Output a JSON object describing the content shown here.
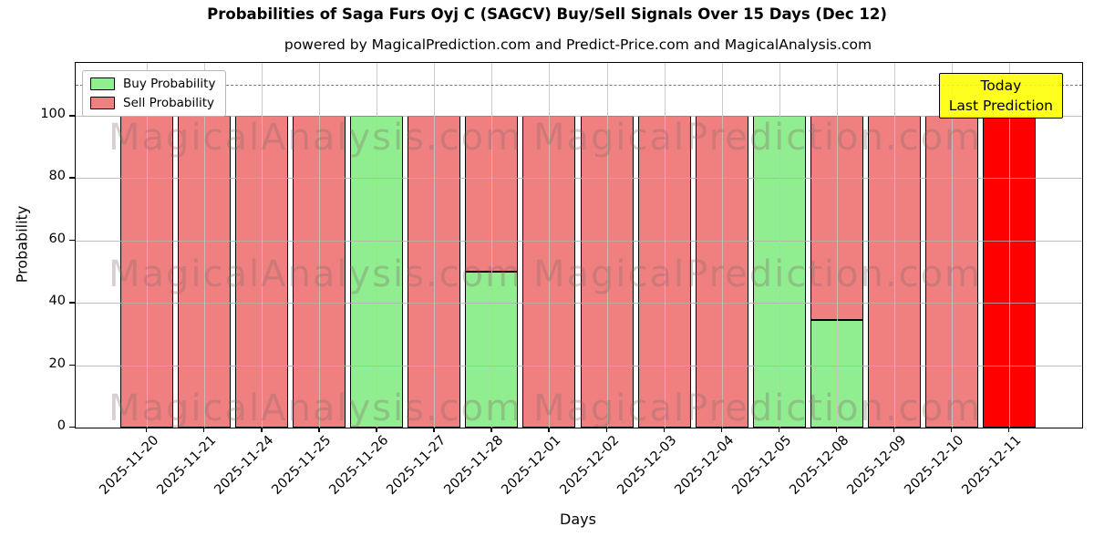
{
  "title": "Probabilities of Saga Furs Oyj C (SAGCV) Buy/Sell Signals Over 15 Days (Dec 12)",
  "subtitle": "powered by MagicalPrediction.com and Predict-Price.com and MagicalAnalysis.com",
  "legend": {
    "buy_label": "Buy Probability",
    "sell_label": "Sell Probability"
  },
  "annotation": {
    "line1": "Today",
    "line2": "Last Prediction"
  },
  "watermarks": {
    "left": "MagicalAnalysis.com",
    "right": "MagicalPrediction.com"
  },
  "axes": {
    "xlabel": "Days",
    "ylabel": "Probability",
    "yticks": [
      0,
      20,
      40,
      60,
      80,
      100
    ]
  },
  "colors": {
    "buy": "#90EE90",
    "sell": "#F08080",
    "today_bar": "#FF0000",
    "annotation_bg": "#FFFF00",
    "bar_edge": "#000000"
  },
  "chart_data": {
    "type": "bar",
    "stacked": true,
    "title": "Probabilities of Saga Furs Oyj C (SAGCV) Buy/Sell Signals Over 15 Days (Dec 12)",
    "xlabel": "Days",
    "ylabel": "Probability",
    "categories": [
      "2025-11-20",
      "2025-11-21",
      "2025-11-24",
      "2025-11-25",
      "2025-11-26",
      "2025-11-27",
      "2025-11-28",
      "2025-12-01",
      "2025-12-02",
      "2025-12-03",
      "2025-12-04",
      "2025-12-05",
      "2025-12-08",
      "2025-12-09",
      "2025-12-10",
      "2025-12-11"
    ],
    "series": [
      {
        "name": "Buy Probability",
        "color": "#90EE90",
        "values": [
          0,
          0,
          0,
          0,
          100,
          0,
          50,
          0,
          0,
          0,
          0,
          100,
          34.5,
          0,
          0,
          0
        ]
      },
      {
        "name": "Sell Probability",
        "color": "#F08080",
        "values": [
          100,
          100,
          100,
          100,
          0,
          100,
          50,
          100,
          100,
          100,
          100,
          0,
          65.5,
          100,
          100,
          100
        ]
      }
    ],
    "today_index": 15,
    "ylim": [
      0,
      117
    ],
    "dashed_line_y": 110,
    "grid": true,
    "legend_position": "upper left"
  }
}
